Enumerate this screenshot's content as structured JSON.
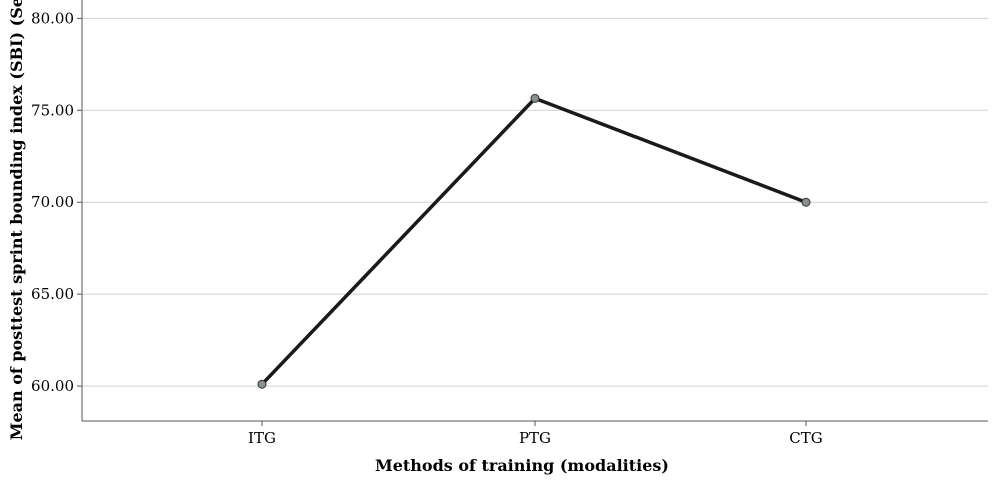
{
  "chart_data": {
    "type": "line",
    "categories": [
      "ITG",
      "PTG",
      "CTG"
    ],
    "values": [
      60.1,
      75.65,
      70.0
    ],
    "xlabel": "Methods of training (modalities)",
    "ylabel": "Mean of posttest sprint bounding index (SBI) (Sec)",
    "ylim": [
      58.1,
      81.0
    ],
    "yticks": [
      "60.00",
      "65.00",
      "70.00",
      "75.00",
      "80.00"
    ],
    "grid": true,
    "line_color": "#1a1a1a",
    "marker_color": "#8a8f8f"
  }
}
